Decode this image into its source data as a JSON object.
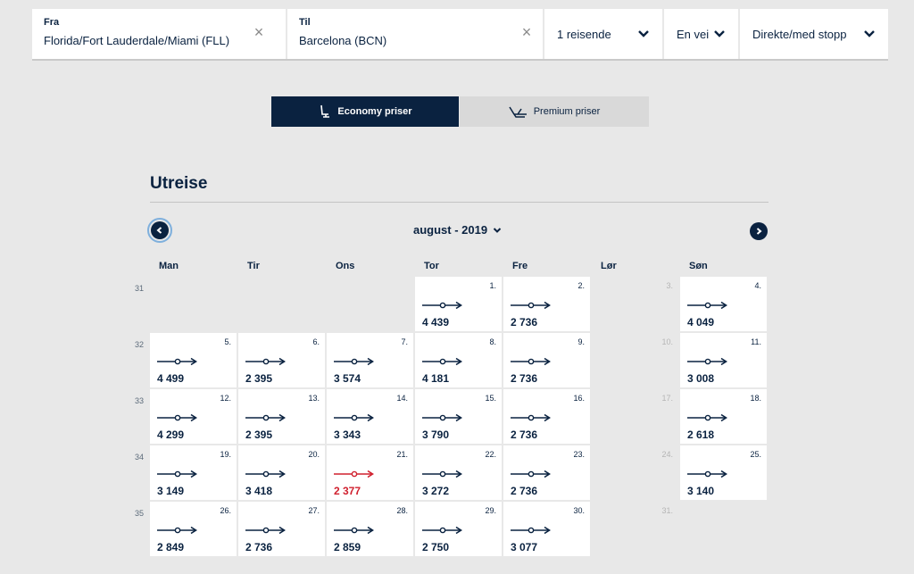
{
  "search": {
    "from_label": "Fra",
    "from_value": "Florida/Fort Lauderdale/Miami (FLL)",
    "to_label": "Til",
    "to_value": "Barcelona (BCN)",
    "clear_glyph": "×",
    "travelers": "1 reisende",
    "trip_type": "En vei",
    "stops": "Direkte/med stopp"
  },
  "fare_toggle": {
    "economy": "Economy priser",
    "premium": "Premium priser"
  },
  "calendar": {
    "title": "Utreise",
    "month": "august - 2019",
    "weekdays": [
      "Man",
      "Tir",
      "Ons",
      "Tor",
      "Fre",
      "Lør",
      "Søn"
    ],
    "weeks": [
      "31",
      "32",
      "33",
      "34",
      "35"
    ],
    "accent_color": "#0a2240",
    "cheapest_color": "#d0202e",
    "days": [
      {
        "num": "1.",
        "price": "4 439"
      },
      {
        "num": "2.",
        "price": "2 736"
      },
      {
        "num": "3.",
        "price": ""
      },
      {
        "num": "4.",
        "price": "4 049"
      },
      {
        "num": "5.",
        "price": "4 499"
      },
      {
        "num": "6.",
        "price": "2 395"
      },
      {
        "num": "7.",
        "price": "3 574"
      },
      {
        "num": "8.",
        "price": "4 181"
      },
      {
        "num": "9.",
        "price": "2 736"
      },
      {
        "num": "10.",
        "price": ""
      },
      {
        "num": "11.",
        "price": "3 008"
      },
      {
        "num": "12.",
        "price": "4 299"
      },
      {
        "num": "13.",
        "price": "2 395"
      },
      {
        "num": "14.",
        "price": "3 343"
      },
      {
        "num": "15.",
        "price": "3 790"
      },
      {
        "num": "16.",
        "price": "2 736"
      },
      {
        "num": "17.",
        "price": ""
      },
      {
        "num": "18.",
        "price": "2 618"
      },
      {
        "num": "19.",
        "price": "3 149"
      },
      {
        "num": "20.",
        "price": "3 418"
      },
      {
        "num": "21.",
        "price": "2 377",
        "cheapest": true
      },
      {
        "num": "22.",
        "price": "3 272"
      },
      {
        "num": "23.",
        "price": "2 736"
      },
      {
        "num": "24.",
        "price": ""
      },
      {
        "num": "25.",
        "price": "3 140"
      },
      {
        "num": "26.",
        "price": "2 849"
      },
      {
        "num": "27.",
        "price": "2 736"
      },
      {
        "num": "28.",
        "price": "2 859"
      },
      {
        "num": "29.",
        "price": "2 750"
      },
      {
        "num": "30.",
        "price": "3 077"
      },
      {
        "num": "31.",
        "price": ""
      }
    ]
  }
}
